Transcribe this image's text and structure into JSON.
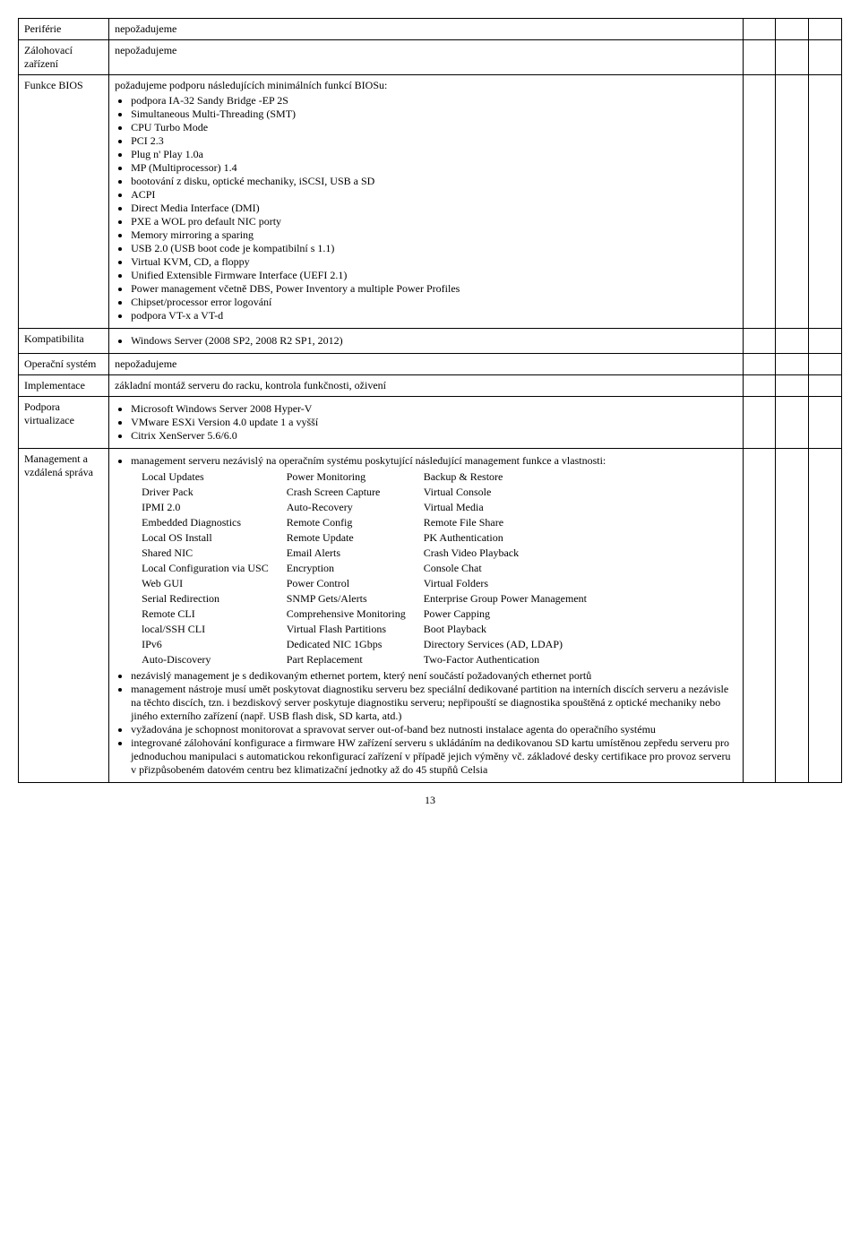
{
  "rows": {
    "periferie": {
      "label": "Periférie",
      "value": "nepožadujeme"
    },
    "zalohovaci": {
      "label": "Zálohovací zařízení",
      "value": "nepožadujeme"
    },
    "funkce_bios": {
      "label": "Funkce BIOS",
      "intro": "požadujeme podporu následujících minimálních funkcí BIOSu:",
      "items": [
        "podpora IA-32 Sandy Bridge -EP 2S",
        "Simultaneous Multi-Threading (SMT)",
        "CPU Turbo Mode",
        "PCI 2.3",
        "Plug n' Play 1.0a",
        "MP (Multiprocessor) 1.4",
        "bootování z disku, optické mechaniky, iSCSI, USB a SD",
        "ACPI",
        "Direct Media Interface (DMI)",
        "PXE a WOL pro default NIC porty",
        "Memory mirroring a sparing",
        "USB 2.0 (USB boot code je kompatibilní s 1.1)",
        "Virtual KVM, CD, a floppy",
        "Unified Extensible Firmware Interface (UEFI 2.1)",
        "Power management včetně DBS, Power Inventory a multiple Power Profiles",
        "Chipset/processor error logování",
        "podpora VT-x a VT-d"
      ]
    },
    "kompatibilita": {
      "label": "Kompatibilita",
      "item": "Windows Server (2008 SP2, 2008 R2 SP1, 2012)"
    },
    "os": {
      "label": "Operační systém",
      "value": "nepožadujeme"
    },
    "implementace": {
      "label": "Implementace",
      "value": "základní montáž serveru do racku, kontrola funkčnosti, oživení"
    },
    "virtualizace": {
      "label": "Podpora virtualizace",
      "items": [
        "Microsoft Windows Server 2008 Hyper-V",
        "VMware ESXi Version 4.0 update 1 a vyšší",
        "Citrix XenServer 5.6/6.0"
      ]
    },
    "management": {
      "label": "Management a vzdálená správa",
      "intro": "management serveru nezávislý na operačním systému poskytující následující management funkce a vlastnosti:",
      "table": [
        [
          "Local Updates",
          "Power Monitoring",
          "Backup & Restore"
        ],
        [
          "Driver Pack",
          "Crash Screen Capture",
          "Virtual Console"
        ],
        [
          "IPMI 2.0",
          "Auto-Recovery",
          "Virtual Media"
        ],
        [
          "Embedded Diagnostics",
          "Remote Config",
          "Remote File Share"
        ],
        [
          "Local OS Install",
          "Remote Update",
          "PK Authentication"
        ],
        [
          "Shared NIC",
          "Email Alerts",
          "Crash Video Playback"
        ],
        [
          "Local Configuration via USC",
          "Encryption",
          "Console Chat"
        ],
        [
          "Web GUI",
          "Power Control",
          "Virtual Folders"
        ],
        [
          "Serial Redirection",
          "SNMP Gets/Alerts",
          "Enterprise Group Power Management"
        ],
        [
          "Remote CLI",
          "Comprehensive Monitoring",
          "Power Capping"
        ],
        [
          "local/SSH CLI",
          "Virtual Flash Partitions",
          "Boot Playback"
        ],
        [
          "IPv6",
          "Dedicated NIC 1Gbps",
          "Directory Services (AD, LDAP)"
        ],
        [
          "Auto-Discovery",
          "Part Replacement",
          "Two-Factor Authentication"
        ]
      ],
      "bullets": [
        "nezávislý management je s dedikovaným ethernet portem, který není součástí požadovaných ethernet portů",
        "management nástroje musí umět poskytovat diagnostiku serveru bez speciální dedikované partition na interních discích serveru a nezávisle na těchto discích, tzn. i bezdiskový server poskytuje diagnostiku serveru; nepřipouští se diagnostika spouštěná z optické mechaniky nebo jiného externího zařízení (např. USB flash disk, SD karta, atd.)",
        "vyžadována je schopnost monitorovat a spravovat server out-of-band bez nutnosti instalace agenta do operačního systému",
        "integrované zálohování konfigurace a firmware HW zařízení serveru s ukládáním na dedikovanou SD kartu umístěnou zepředu serveru pro jednoduchou manipulaci s automatickou rekonfigurací zařízení v případě jejich výměny vč. základové desky certifikace pro provoz serveru v přizpůsobeném datovém centru bez klimatizační jednotky až do 45 stupňů Celsia"
      ]
    }
  },
  "page": "13"
}
